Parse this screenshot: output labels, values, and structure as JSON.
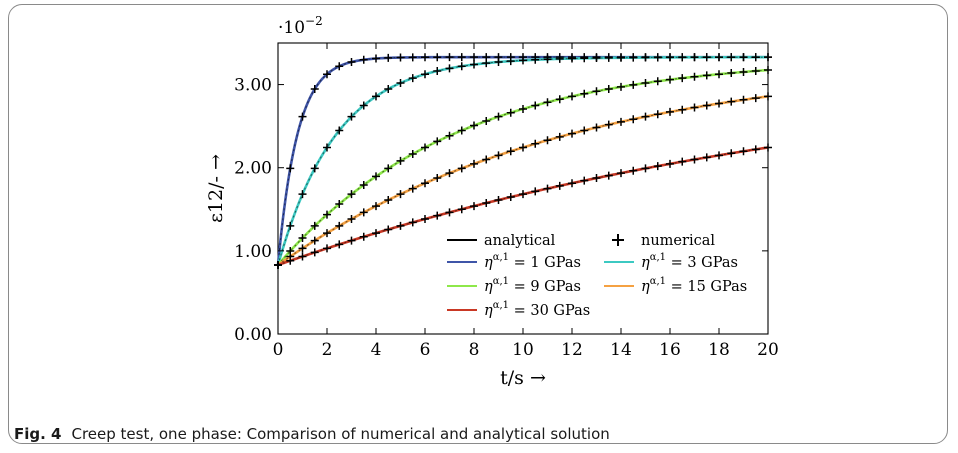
{
  "caption": {
    "label": "Fig. 4",
    "text": "Creep test, one phase: Comparison of numerical and analytical solution"
  },
  "chart_data": {
    "type": "line",
    "title": "",
    "xlabel": "t/s →",
    "ylabel": "ε12/- →",
    "y_multiplier": "·10−2",
    "xlim": [
      0,
      20
    ],
    "ylim": [
      0,
      3.5
    ],
    "xticks": [
      0,
      2,
      4,
      6,
      8,
      10,
      12,
      14,
      16,
      18,
      20
    ],
    "yticks": [
      0.0,
      1.0,
      2.0,
      3.0
    ],
    "ytick_labels": [
      "0.00",
      "1.00",
      "2.00",
      "3.00"
    ],
    "grid": false,
    "legend_position": "bottom-right",
    "legend": [
      {
        "label": "analytical",
        "marker": "line",
        "color": "#000000"
      },
      {
        "label": "numerical",
        "marker": "plus",
        "color": "#000000"
      },
      {
        "label": "η^α,1 = 1 GPas",
        "marker": "line",
        "color": "#3f55a8"
      },
      {
        "label": "η^α,1 = 3 GPas",
        "marker": "line",
        "color": "#3cc9c2"
      },
      {
        "label": "η^α,1 = 9 GPas",
        "marker": "line",
        "color": "#8ee84a"
      },
      {
        "label": "η^α,1 = 15 GPas",
        "marker": "line",
        "color": "#f5a142"
      },
      {
        "label": "η^α,1 = 30 GPas",
        "marker": "line",
        "color": "#c93824"
      }
    ],
    "model": {
      "eps0": 0.83,
      "eps_inf": 3.33
    },
    "series": [
      {
        "name": "η^α,1 = 1 GPas",
        "color": "#3f55a8",
        "tau": 0.8
      },
      {
        "name": "η^α,1 = 3 GPas",
        "color": "#3cc9c2",
        "tau": 2.4
      },
      {
        "name": "η^α,1 = 9 GPas",
        "color": "#8ee84a",
        "tau": 7.2
      },
      {
        "name": "η^α,1 = 15 GPas",
        "color": "#f5a142",
        "tau": 12.0
      },
      {
        "name": "η^α,1 = 30 GPas",
        "color": "#c93824",
        "tau": 24.0
      }
    ],
    "numerical_step": 0.5
  }
}
